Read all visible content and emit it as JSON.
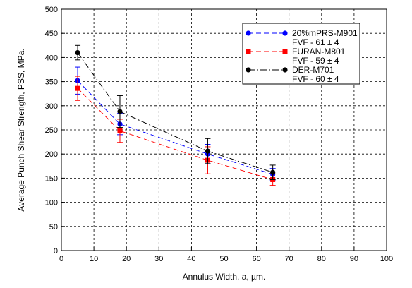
{
  "chart_data": {
    "type": "line",
    "xlabel": "Annulus Width, a, µm.",
    "ylabel": "Average Punch Shear Strength, PSS, MPa.",
    "xlim": [
      0,
      100
    ],
    "ylim": [
      0,
      500
    ],
    "xticks": [
      0,
      10,
      20,
      30,
      40,
      50,
      60,
      70,
      80,
      90,
      100
    ],
    "yticks": [
      0,
      50,
      100,
      150,
      200,
      250,
      300,
      350,
      400,
      450,
      500
    ],
    "grid": true,
    "legend_position": "top-right",
    "series": [
      {
        "name": "20%mPRS-M901",
        "subtitle": "FVF - 61 ± 4",
        "color": "#0000ff",
        "marker": "circle",
        "line_style": "dash",
        "points": [
          {
            "x": 5,
            "y": 352,
            "err": 28
          },
          {
            "x": 18,
            "y": 262,
            "err": 22
          },
          {
            "x": 45,
            "y": 200,
            "err": 20
          },
          {
            "x": 65,
            "y": 158,
            "err": 12
          }
        ]
      },
      {
        "name": "FURAN-M801",
        "subtitle": "FVF - 59 ± 4",
        "color": "#ff0000",
        "marker": "square",
        "line_style": "dash",
        "points": [
          {
            "x": 5,
            "y": 336,
            "err": 25
          },
          {
            "x": 18,
            "y": 248,
            "err": 24
          },
          {
            "x": 45,
            "y": 187,
            "err": 28
          },
          {
            "x": 65,
            "y": 147,
            "err": 12
          }
        ]
      },
      {
        "name": "DER-M701",
        "subtitle": "FVF - 60 ± 4",
        "color": "#000000",
        "marker": "circle",
        "line_style": "dashdot",
        "points": [
          {
            "x": 5,
            "y": 410,
            "err": 15
          },
          {
            "x": 18,
            "y": 288,
            "err": 33
          },
          {
            "x": 45,
            "y": 206,
            "err": 26
          },
          {
            "x": 65,
            "y": 162,
            "err": 15
          }
        ]
      }
    ]
  }
}
